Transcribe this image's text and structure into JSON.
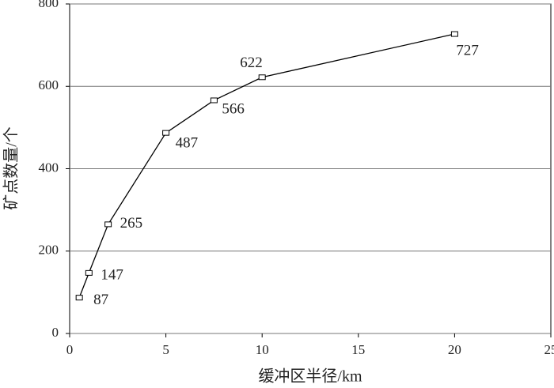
{
  "chart_data": {
    "type": "line",
    "x_label": "缓冲区半径/km",
    "y_label": "矿点数量/个",
    "x": [
      0.5,
      1,
      2,
      5,
      7.5,
      10,
      20
    ],
    "series": [
      {
        "color": "#000000",
        "values": [
          87,
          147,
          265,
          487,
          566,
          622,
          727
        ]
      }
    ],
    "xlim": [
      0,
      25
    ],
    "xticks": [
      0,
      5,
      10,
      15,
      20,
      25
    ],
    "ylim": [
      0,
      800
    ],
    "yticks": [
      0,
      200,
      400,
      600,
      800
    ],
    "grid": true
  }
}
